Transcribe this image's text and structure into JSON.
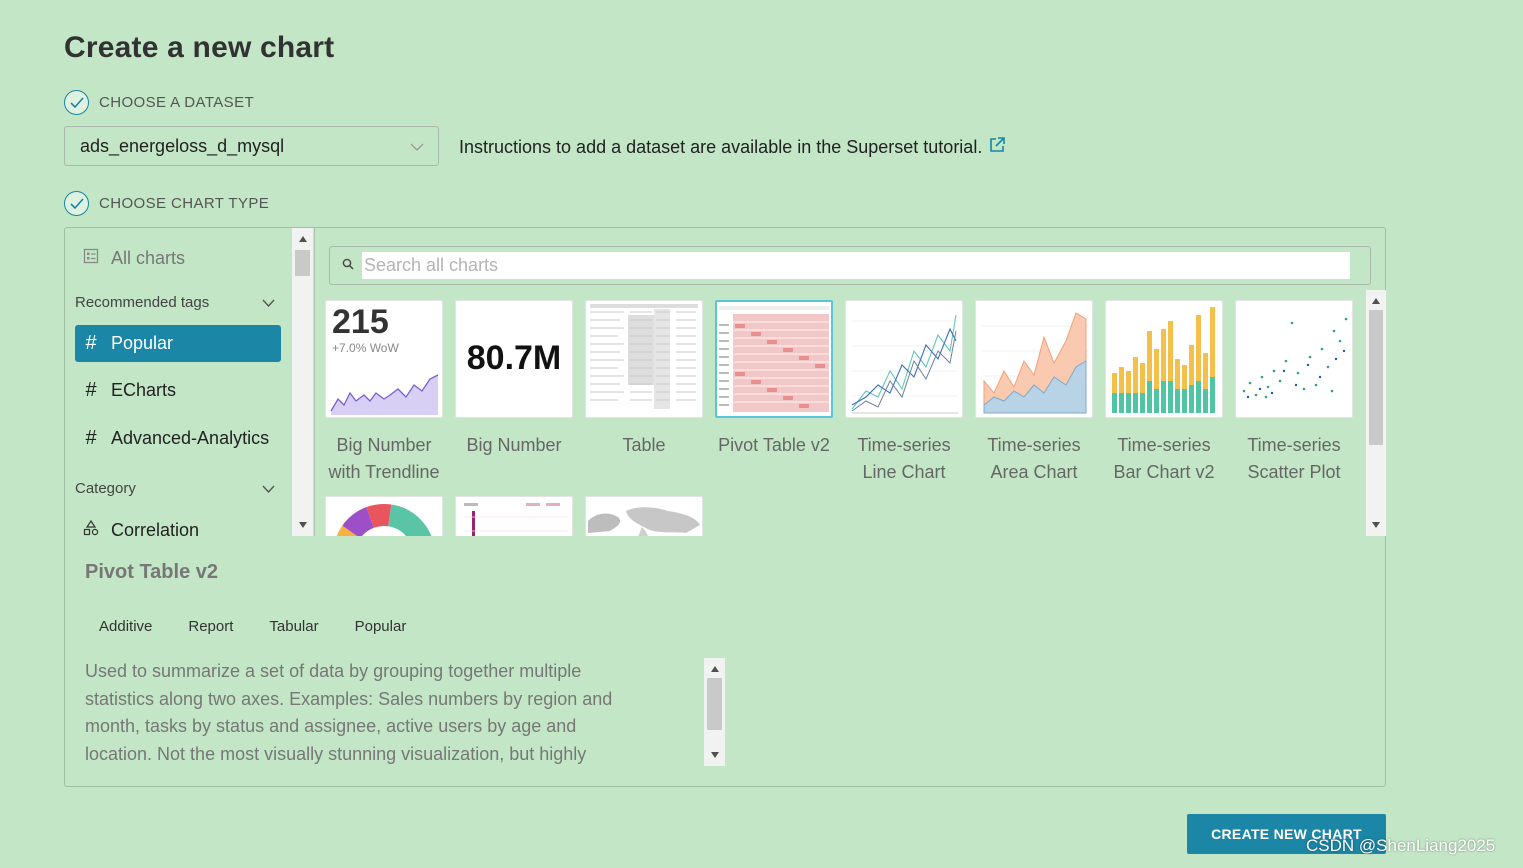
{
  "page": {
    "title": "Create a new chart"
  },
  "steps": {
    "dataset_label": "CHOOSE A DATASET",
    "chart_type_label": "CHOOSE CHART TYPE"
  },
  "dataset": {
    "selected": "ads_energeloss_d_mysql",
    "hint": "Instructions to add a dataset are available in the Superset tutorial."
  },
  "sidebar": {
    "all_charts": "All charts",
    "recommended_tags": "Recommended tags",
    "tags": [
      "Popular",
      "ECharts",
      "Advanced-Analytics"
    ],
    "category": "Category",
    "first_category": "Correlation"
  },
  "search": {
    "placeholder": "Search all charts"
  },
  "charts": [
    {
      "name_line1": "Big Number",
      "name_line2": "with Trendline",
      "thumb_value": "215",
      "thumb_sub": "+7.0% WoW"
    },
    {
      "name_line1": "Big Number",
      "name_line2": "",
      "thumb_value": "80.7M"
    },
    {
      "name_line1": "Table",
      "name_line2": ""
    },
    {
      "name_line1": "Pivot Table v2",
      "name_line2": "",
      "selected": true
    },
    {
      "name_line1": "Time-series",
      "name_line2": "Line Chart"
    },
    {
      "name_line1": "Time-series",
      "name_line2": "Area Chart"
    },
    {
      "name_line1": "Time-series",
      "name_line2": "Bar Chart v2"
    },
    {
      "name_line1": "Time-series",
      "name_line2": "Scatter Plot"
    }
  ],
  "detail": {
    "title": "Pivot Table v2",
    "tags": [
      "Additive",
      "Report",
      "Tabular",
      "Popular"
    ],
    "description": "Used to summarize a set of data by grouping together multiple statistics along two axes. Examples: Sales numbers by region and month, tasks by status and assignee, active users by age and location. Not the most visually stunning visualization, but highly"
  },
  "actions": {
    "create_label": "CREATE NEW CHART"
  },
  "watermark": "CSDN @ShenLiang2025",
  "colors": {
    "accent": "#1b86a6",
    "background": "#c2e6c6"
  }
}
